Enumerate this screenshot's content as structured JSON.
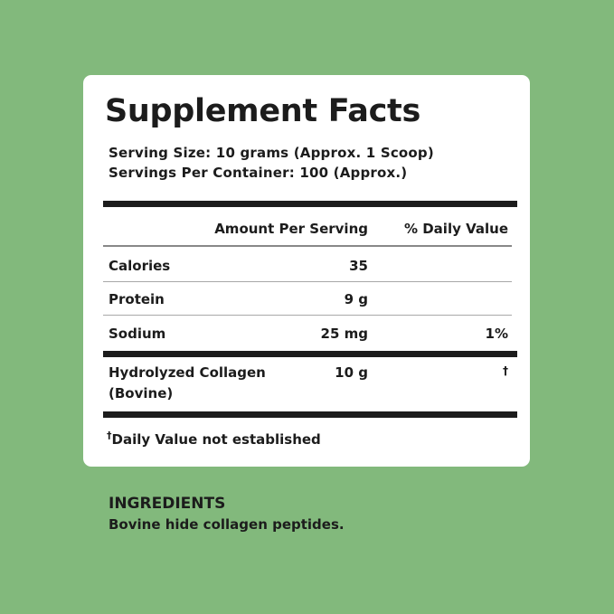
{
  "colors": {
    "background": "#82b97c",
    "card": "#ffffff",
    "text": "#1c1c1c"
  },
  "label": {
    "title": "Supplement Facts",
    "serving_size": "Serving Size: 10 grams (Approx. 1 Scoop)",
    "servings_per_container": "Servings Per Container: 100 (Approx.)",
    "header": {
      "amount": "Amount Per Serving",
      "daily_value": "% Daily Value"
    },
    "rows": [
      {
        "name": "Calories",
        "amount": "35",
        "dv": ""
      },
      {
        "name": "Protein",
        "amount": "9 g",
        "dv": ""
      },
      {
        "name": "Sodium",
        "amount": "25 mg",
        "dv": "1%"
      },
      {
        "name": "Hydrolyzed Collagen",
        "name2": "(Bovine)",
        "amount": "10 g",
        "dv": "†"
      }
    ],
    "footnote_mark": "†",
    "footnote": "Daily Value not established"
  },
  "ingredients": {
    "heading": "INGREDIENTS",
    "text": "Bovine hide collagen peptides."
  }
}
